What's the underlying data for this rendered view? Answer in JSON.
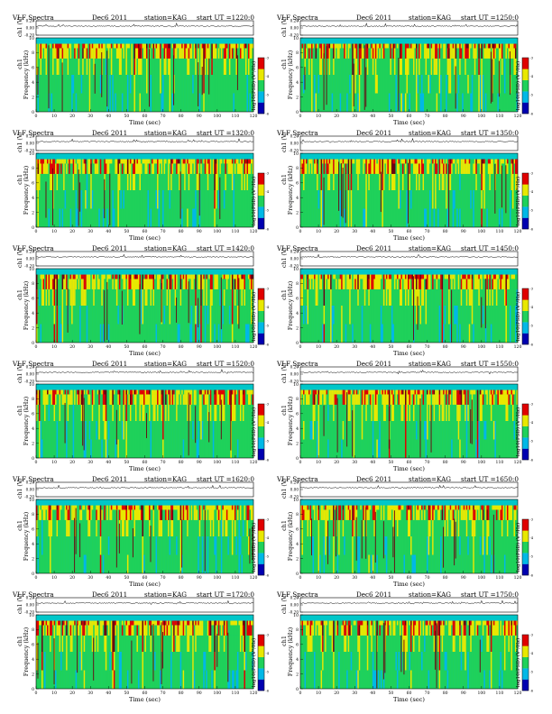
{
  "chart_data": {
    "type": "heatmap",
    "page_title": "",
    "header": {
      "left": "VLF Spectra",
      "date": "Dec6 2011",
      "station": "station=KAG",
      "start_prefix": "start  UT =",
      "start_unit_suffix": ""
    },
    "signal_label": "ch1 (V)",
    "signal_ticks": [
      "0.20",
      "0.00",
      "-0.20"
    ],
    "signal_ylim": [
      -0.2,
      0.2
    ],
    "ylabel": "Frequency (kHz)",
    "ylabel_left_tag": "ch1",
    "yticks": [
      "0",
      "2",
      "4",
      "6",
      "8",
      "10"
    ],
    "ylim": [
      0,
      10
    ],
    "xlabel": "Time (sec)",
    "xticks": [
      "0",
      "10",
      "20",
      "30",
      "40",
      "50",
      "60",
      "70",
      "80",
      "90",
      "100",
      "110",
      "120"
    ],
    "xlim": [
      0,
      120
    ],
    "colorbar_label": "log10(PSD) (V²/Hz)",
    "colorbar_ticks": [
      "-6",
      "-5",
      "-4",
      "-3"
    ],
    "colorbar_range": [
      -6,
      -3
    ],
    "colors": {
      "background": "#00c7c9",
      "low": "#0000b0",
      "mid_low": "#00b8e6",
      "mid": "#1fd15a",
      "mid_high": "#e8e800",
      "high": "#e00000",
      "top": "#6b0010"
    },
    "panels": [
      {
        "start_ut": "1220:0",
        "col": 0,
        "row": 0
      },
      {
        "start_ut": "1250:0",
        "col": 1,
        "row": 0
      },
      {
        "start_ut": "1320:0",
        "col": 0,
        "row": 1
      },
      {
        "start_ut": "1350:0",
        "col": 1,
        "row": 1
      },
      {
        "start_ut": "1420:0",
        "col": 0,
        "row": 2
      },
      {
        "start_ut": "1450:0",
        "col": 1,
        "row": 2
      },
      {
        "start_ut": "1520:0",
        "col": 0,
        "row": 3
      },
      {
        "start_ut": "1550:0",
        "col": 1,
        "row": 3
      },
      {
        "start_ut": "1620:0",
        "col": 0,
        "row": 4
      },
      {
        "start_ut": "1650:0",
        "col": 1,
        "row": 4
      },
      {
        "start_ut": "1720:0",
        "col": 0,
        "row": 5
      },
      {
        "start_ut": "1750:0",
        "col": 1,
        "row": 5
      }
    ]
  }
}
